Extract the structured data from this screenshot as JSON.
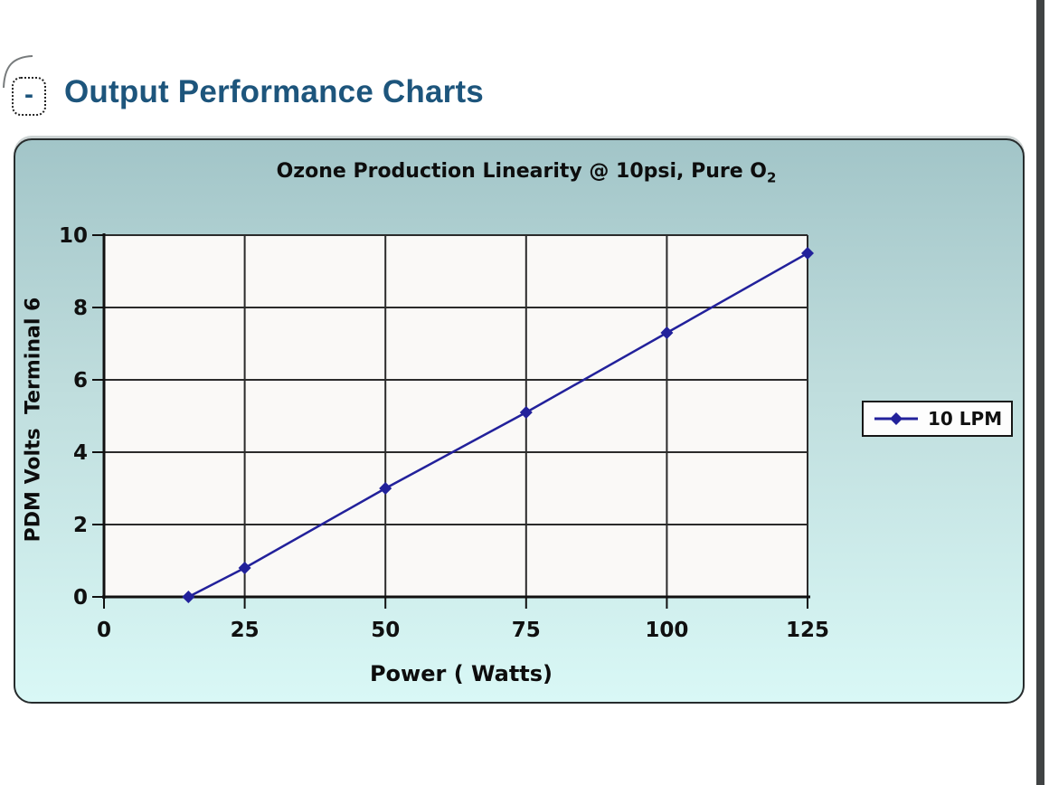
{
  "header": {
    "collapse_glyph": "-",
    "title": "Output Performance Charts"
  },
  "chart_data": {
    "type": "line",
    "title": "Ozone Production Linearity @ 10psi, Pure O2",
    "title_main": "Ozone Production Linearity @ 10psi, Pure O",
    "title_sub": "2",
    "xlabel": "Power ( Watts)",
    "ylabel": "PDM Volts  Terminal 6",
    "xlim": [
      0,
      125
    ],
    "ylim": [
      0,
      10
    ],
    "x_ticks": [
      0,
      25,
      50,
      75,
      100,
      125
    ],
    "y_ticks": [
      0,
      2,
      4,
      6,
      8,
      10
    ],
    "grid": true,
    "legend_position": "right-outside-plot",
    "series": [
      {
        "name": "10 LPM",
        "color": "#22219b",
        "marker": "diamond",
        "x": [
          15,
          25,
          50,
          75,
          100,
          125
        ],
        "y": [
          0,
          0.8,
          3.0,
          5.1,
          7.3,
          9.5
        ]
      }
    ]
  },
  "colors": {
    "heading": "#1d557c",
    "panel_top": "#a2c5c8",
    "panel_bottom": "#d9f8f6",
    "plot_background": "#faf9f7",
    "gridline": "#2b2b2b",
    "axis": "#111111",
    "window_strip": "#404344"
  }
}
